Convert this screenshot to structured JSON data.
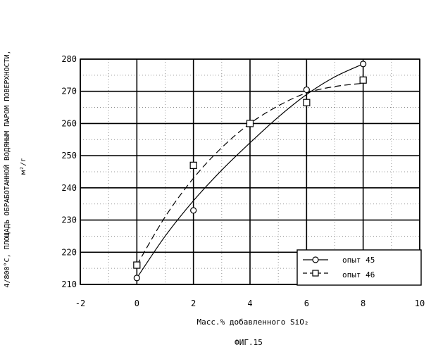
{
  "chart_data": {
    "type": "scatter",
    "xlabel": "Масс.% добавленного SiO₂",
    "ylabel": "4/800°С, ПЛОЩАДЬ ОБРАБОТАННОЙ ВОДЯНЫМ ПАРОМ ПОВЕРХНОСТИ,",
    "ylabel_units": "м²/г",
    "caption": "ФИГ.15",
    "xlim": [
      -2,
      10
    ],
    "ylim": [
      210,
      280
    ],
    "x_ticks": [
      "-2",
      "0",
      "2",
      "4",
      "6",
      "8",
      "10"
    ],
    "y_ticks": [
      "210",
      "220",
      "230",
      "240",
      "250",
      "260",
      "270",
      "280"
    ],
    "grid": true,
    "legend_position": "bottom-right",
    "series": [
      {
        "name": "опыт 45",
        "marker": "circle",
        "line": "solid",
        "x": [
          0,
          2,
          6,
          8
        ],
        "y": [
          212,
          233,
          270.5,
          278.5
        ],
        "fit": [
          [
            0,
            212
          ],
          [
            1,
            225
          ],
          [
            2,
            236
          ],
          [
            3,
            245.5
          ],
          [
            4,
            254
          ],
          [
            5,
            262
          ],
          [
            6,
            269
          ],
          [
            7,
            274.5
          ],
          [
            8,
            278.5
          ]
        ]
      },
      {
        "name": "опыт 46",
        "marker": "square",
        "line": "dashed",
        "x": [
          0,
          2,
          4,
          6,
          8
        ],
        "y": [
          216,
          247,
          260,
          266.5,
          273.5
        ],
        "fit": [
          [
            0,
            216
          ],
          [
            1,
            231
          ],
          [
            2,
            243
          ],
          [
            3,
            252.5
          ],
          [
            4,
            260
          ],
          [
            5,
            265.5
          ],
          [
            6,
            269.5
          ],
          [
            7,
            271.5
          ],
          [
            8,
            272.5
          ]
        ]
      }
    ]
  }
}
